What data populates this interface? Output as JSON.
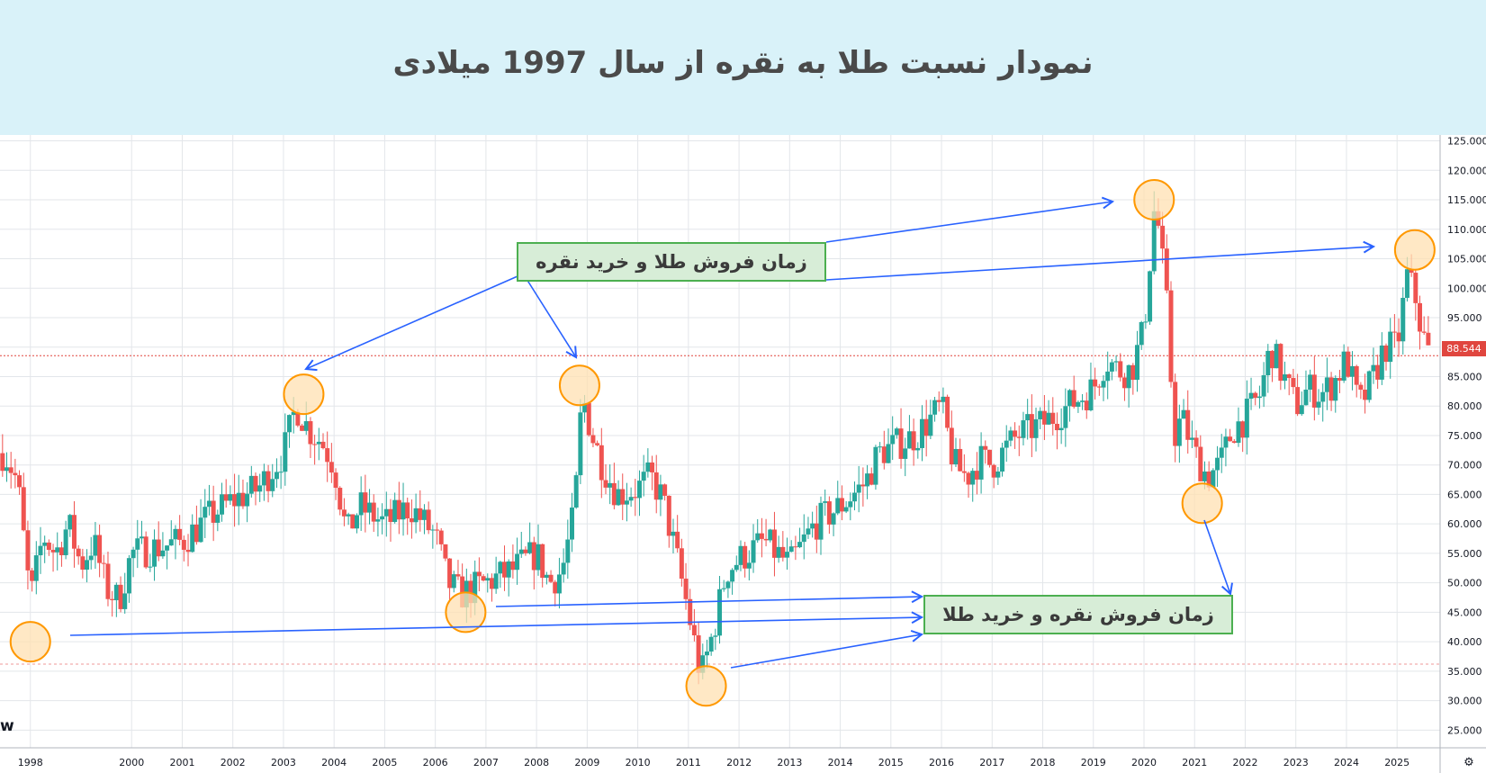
{
  "title": "نمودار نسبت طلا به نقره از سال 1997 میلادی",
  "watermark": "w",
  "annotations": {
    "sell_gold_buy_silver": "زمان فروش طلا و خرید نقره",
    "sell_silver_buy_gold": "زمان فروش نقره و خرید طلا"
  },
  "colors": {
    "up": "#26a69a",
    "down": "#ef5350",
    "arrow": "#2962ff",
    "circle_fill": "#ffe0b2",
    "circle_stroke": "#ff9800",
    "box_fill": "#d7edd7",
    "box_stroke": "#4caf50",
    "banner": "#d9f2f9",
    "price_line": "#e0463f",
    "support_line": "#ef9a9a"
  },
  "chart_data": {
    "type": "candlestick",
    "title": "",
    "xlabel": "",
    "ylabel": "",
    "x_ticks": [
      "1998",
      "2000",
      "2001",
      "2002",
      "2003",
      "2004",
      "2005",
      "2006",
      "2007",
      "2008",
      "2009",
      "2010",
      "2011",
      "2012",
      "2013",
      "2014",
      "2015",
      "2016",
      "2017",
      "2018",
      "2019",
      "2020",
      "2021",
      "2022",
      "2023",
      "2024",
      "2025"
    ],
    "y_ticks": [
      "25.000",
      "30.000",
      "35.000",
      "40.000",
      "45.000",
      "50.000",
      "55.000",
      "60.000",
      "65.000",
      "70.000",
      "75.000",
      "80.000",
      "85.000",
      "90.000",
      "95.000",
      "100.000",
      "105.000",
      "110.000",
      "115.000",
      "120.000",
      "125.000"
    ],
    "ylim": [
      22,
      126
    ],
    "xlim": [
      1997.4,
      2025.85
    ],
    "last_price": 88.544,
    "last_price_label": "88.544",
    "support_level": 36.2,
    "grid": true,
    "series": [
      {
        "values": [
          [
            1997.5,
            72
          ],
          [
            1997.75,
            67
          ],
          [
            1998.0,
            47
          ],
          [
            1998.25,
            58
          ],
          [
            1998.5,
            55
          ],
          [
            1998.75,
            60
          ],
          [
            1999.0,
            53
          ],
          [
            1999.25,
            57
          ],
          [
            1999.5,
            49
          ],
          [
            1999.75,
            47
          ],
          [
            2000.0,
            55
          ],
          [
            2000.5,
            56
          ],
          [
            2001.0,
            57
          ],
          [
            2001.5,
            61
          ],
          [
            2002.0,
            64
          ],
          [
            2002.5,
            66
          ],
          [
            2003.0,
            72
          ],
          [
            2003.25,
            80
          ],
          [
            2003.5,
            76
          ],
          [
            2003.75,
            74
          ],
          [
            2004.0,
            70
          ],
          [
            2004.25,
            58
          ],
          [
            2004.5,
            63
          ],
          [
            2005.0,
            60
          ],
          [
            2005.5,
            63
          ],
          [
            2006.0,
            58
          ],
          [
            2006.25,
            50
          ],
          [
            2006.5,
            48
          ],
          [
            2007.0,
            50
          ],
          [
            2007.5,
            52
          ],
          [
            2008.0,
            55
          ],
          [
            2008.25,
            50
          ],
          [
            2008.5,
            52
          ],
          [
            2008.75,
            62
          ],
          [
            2008.9,
            82
          ],
          [
            2009.1,
            75
          ],
          [
            2009.3,
            70
          ],
          [
            2009.6,
            65
          ],
          [
            2010.0,
            66
          ],
          [
            2010.25,
            68
          ],
          [
            2010.5,
            64
          ],
          [
            2010.75,
            55
          ],
          [
            2011.0,
            45
          ],
          [
            2011.25,
            34
          ],
          [
            2011.5,
            42
          ],
          [
            2011.75,
            52
          ],
          [
            2012.0,
            54
          ],
          [
            2012.5,
            57
          ],
          [
            2013.0,
            53
          ],
          [
            2013.5,
            60
          ],
          [
            2014.0,
            63
          ],
          [
            2014.5,
            67
          ],
          [
            2014.75,
            72
          ],
          [
            2015.0,
            73
          ],
          [
            2015.5,
            75
          ],
          [
            2016.0,
            80
          ],
          [
            2016.25,
            70
          ],
          [
            2016.5,
            68
          ],
          [
            2016.75,
            71
          ],
          [
            2017.0,
            70
          ],
          [
            2017.5,
            75
          ],
          [
            2018.0,
            77
          ],
          [
            2018.5,
            80
          ],
          [
            2019.0,
            83
          ],
          [
            2019.25,
            88
          ],
          [
            2019.5,
            86
          ],
          [
            2019.75,
            86
          ],
          [
            2020.0,
            93
          ],
          [
            2020.2,
            113
          ],
          [
            2020.3,
            110
          ],
          [
            2020.45,
            97
          ],
          [
            2020.6,
            75
          ],
          [
            2020.75,
            78
          ],
          [
            2021.0,
            72
          ],
          [
            2021.25,
            68
          ],
          [
            2021.5,
            70
          ],
          [
            2021.75,
            76
          ],
          [
            2022.0,
            78
          ],
          [
            2022.3,
            82
          ],
          [
            2022.5,
            90
          ],
          [
            2022.75,
            85
          ],
          [
            2023.0,
            80
          ],
          [
            2023.25,
            83
          ],
          [
            2023.5,
            82
          ],
          [
            2023.75,
            84
          ],
          [
            2024.0,
            88
          ],
          [
            2024.25,
            80
          ],
          [
            2024.5,
            84
          ],
          [
            2024.75,
            90
          ],
          [
            2025.0,
            90
          ],
          [
            2025.2,
            102
          ],
          [
            2025.35,
            99
          ],
          [
            2025.5,
            92
          ],
          [
            2025.65,
            88.5
          ]
        ]
      }
    ],
    "highlights": [
      {
        "x": 1998.0,
        "y": 40.0,
        "kind": "low"
      },
      {
        "x": 2003.4,
        "y": 82.0,
        "kind": "high"
      },
      {
        "x": 2006.6,
        "y": 45.0,
        "kind": "low"
      },
      {
        "x": 2008.85,
        "y": 83.5,
        "kind": "high"
      },
      {
        "x": 2011.35,
        "y": 32.5,
        "kind": "low"
      },
      {
        "x": 2020.2,
        "y": 115.0,
        "kind": "high"
      },
      {
        "x": 2021.15,
        "y": 63.5,
        "kind": "low"
      },
      {
        "x": 2025.35,
        "y": 106.5,
        "kind": "high"
      }
    ]
  }
}
